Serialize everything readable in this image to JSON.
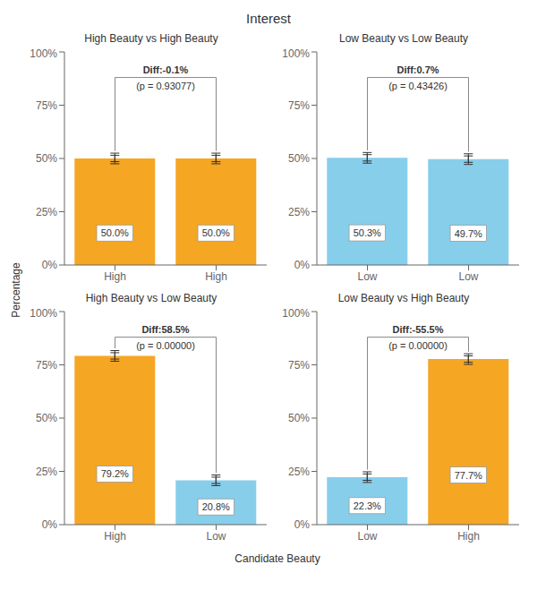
{
  "title": "Interest",
  "xlabel": "Candidate Beauty",
  "ylabel": "Percentage",
  "chart_data": [
    {
      "type": "bar",
      "title": "High Beauty vs High Beauty",
      "categories": [
        "High",
        "High"
      ],
      "values": [
        50.0,
        50.0
      ],
      "value_labels": [
        "50.0%",
        "50.0%"
      ],
      "colors": [
        "#F5A623",
        "#F5A623"
      ],
      "errors": [
        2.5,
        2.5
      ],
      "inner_errors": [
        1.5,
        1.5
      ],
      "bracket_y": 88,
      "annotations": [
        "Diff:-0.1%",
        "(p = 0.93077)"
      ],
      "ylim": [
        0,
        100
      ],
      "yticks": [
        {
          "value": 0,
          "label": "0%"
        },
        {
          "value": 25,
          "label": "25%"
        },
        {
          "value": 50,
          "label": "50%"
        },
        {
          "value": 75,
          "label": "75%"
        },
        {
          "value": 100,
          "label": "100%"
        }
      ],
      "grid": false,
      "data_labels": true
    },
    {
      "type": "bar",
      "title": "Low Beauty vs Low Beauty",
      "categories": [
        "Low",
        "Low"
      ],
      "values": [
        50.3,
        49.7
      ],
      "value_labels": [
        "50.3%",
        "49.7%"
      ],
      "colors": [
        "#87CEEB",
        "#87CEEB"
      ],
      "errors": [
        2.5,
        2.5
      ],
      "inner_errors": [
        1.5,
        1.5
      ],
      "bracket_y": 88,
      "annotations": [
        "Diff:0.7%",
        "(p = 0.43426)"
      ],
      "ylim": [
        0,
        100
      ],
      "yticks": [
        {
          "value": 0,
          "label": "0%"
        },
        {
          "value": 25,
          "label": "25%"
        },
        {
          "value": 50,
          "label": "50%"
        },
        {
          "value": 75,
          "label": "75%"
        },
        {
          "value": 100,
          "label": "100%"
        }
      ],
      "grid": false,
      "data_labels": true
    },
    {
      "type": "bar",
      "title": "High Beauty vs Low Beauty",
      "categories": [
        "High",
        "Low"
      ],
      "values": [
        79.2,
        20.8
      ],
      "value_labels": [
        "79.2%",
        "20.8%"
      ],
      "colors": [
        "#F5A623",
        "#87CEEB"
      ],
      "errors": [
        2.5,
        2.5
      ],
      "inner_errors": [
        1.5,
        1.5
      ],
      "bracket_y": 88,
      "annotations": [
        "Diff:58.5%",
        "(p = 0.00000)"
      ],
      "ylim": [
        0,
        100
      ],
      "yticks": [
        {
          "value": 0,
          "label": "0%"
        },
        {
          "value": 25,
          "label": "25%"
        },
        {
          "value": 50,
          "label": "50%"
        },
        {
          "value": 75,
          "label": "75%"
        },
        {
          "value": 100,
          "label": "100%"
        }
      ],
      "grid": false,
      "data_labels": true
    },
    {
      "type": "bar",
      "title": "Low Beauty vs High Beauty",
      "categories": [
        "Low",
        "High"
      ],
      "values": [
        22.3,
        77.7
      ],
      "value_labels": [
        "22.3%",
        "77.7%"
      ],
      "colors": [
        "#87CEEB",
        "#F5A623"
      ],
      "errors": [
        2.5,
        2.5
      ],
      "inner_errors": [
        1.5,
        1.5
      ],
      "bracket_y": 88,
      "annotations": [
        "Diff:-55.5%",
        "(p = 0.00000)"
      ],
      "ylim": [
        0,
        100
      ],
      "yticks": [
        {
          "value": 0,
          "label": "0%"
        },
        {
          "value": 25,
          "label": "25%"
        },
        {
          "value": 50,
          "label": "50%"
        },
        {
          "value": 75,
          "label": "75%"
        },
        {
          "value": 100,
          "label": "100%"
        }
      ],
      "grid": false,
      "data_labels": true
    }
  ]
}
